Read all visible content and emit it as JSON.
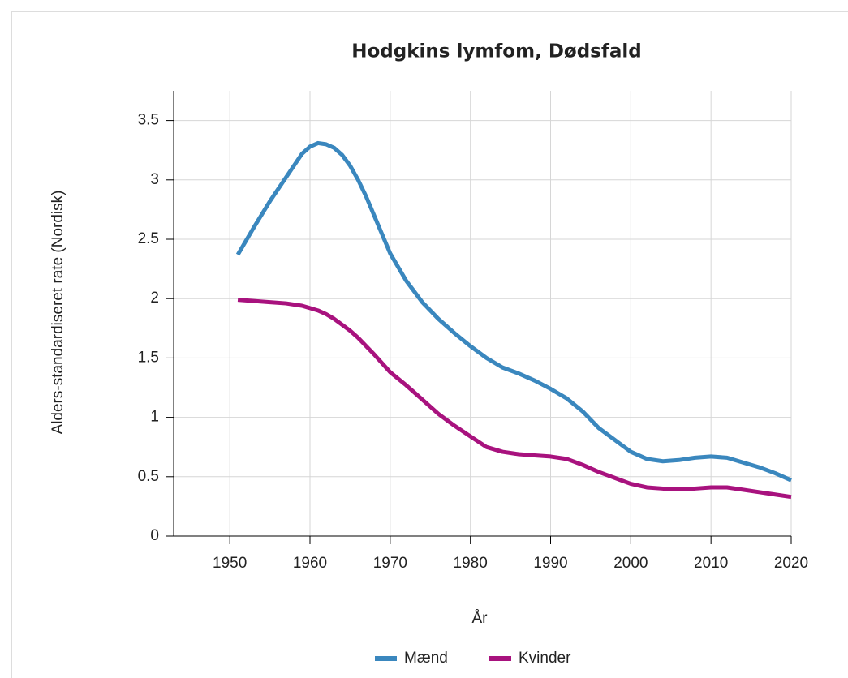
{
  "chart_data": {
    "type": "line",
    "title": "Hodgkins lymfom, Dødsfald",
    "xlabel": "År",
    "ylabel": "Alders-standardiseret rate (Nordisk)",
    "x": [
      1951,
      1953,
      1955,
      1957,
      1959,
      1960,
      1961,
      1962,
      1963,
      1964,
      1965,
      1966,
      1967,
      1968,
      1970,
      1972,
      1974,
      1976,
      1978,
      1980,
      1982,
      1984,
      1986,
      1988,
      1990,
      1992,
      1994,
      1996,
      1998,
      2000,
      2002,
      2004,
      2006,
      2008,
      2010,
      2012,
      2014,
      2016,
      2018,
      2020
    ],
    "series": [
      {
        "name": "Mænd",
        "color": "#3a87be",
        "values": [
          2.37,
          2.6,
          2.82,
          3.02,
          3.22,
          3.28,
          3.31,
          3.3,
          3.27,
          3.21,
          3.12,
          3.0,
          2.86,
          2.7,
          2.38,
          2.15,
          1.97,
          1.83,
          1.71,
          1.6,
          1.5,
          1.42,
          1.37,
          1.31,
          1.24,
          1.16,
          1.05,
          0.91,
          0.81,
          0.71,
          0.65,
          0.63,
          0.64,
          0.66,
          0.67,
          0.66,
          0.62,
          0.58,
          0.53,
          0.47
        ]
      },
      {
        "name": "Kvinder",
        "color": "#a8127e",
        "values": [
          1.99,
          1.98,
          1.97,
          1.96,
          1.94,
          1.92,
          1.9,
          1.87,
          1.83,
          1.78,
          1.73,
          1.67,
          1.6,
          1.53,
          1.38,
          1.27,
          1.15,
          1.03,
          0.93,
          0.84,
          0.75,
          0.71,
          0.69,
          0.68,
          0.67,
          0.65,
          0.6,
          0.54,
          0.49,
          0.44,
          0.41,
          0.4,
          0.4,
          0.4,
          0.41,
          0.41,
          0.39,
          0.37,
          0.35,
          0.33
        ]
      }
    ],
    "xlim": [
      1943,
      2020
    ],
    "xticks": [
      1950,
      1960,
      1970,
      1980,
      1990,
      2000,
      2010,
      2020
    ],
    "ylim": [
      0,
      3.75
    ],
    "yticks": [
      0,
      0.5,
      1,
      1.5,
      2,
      2.5,
      3,
      3.5
    ],
    "grid": true,
    "legend": "bottom"
  }
}
